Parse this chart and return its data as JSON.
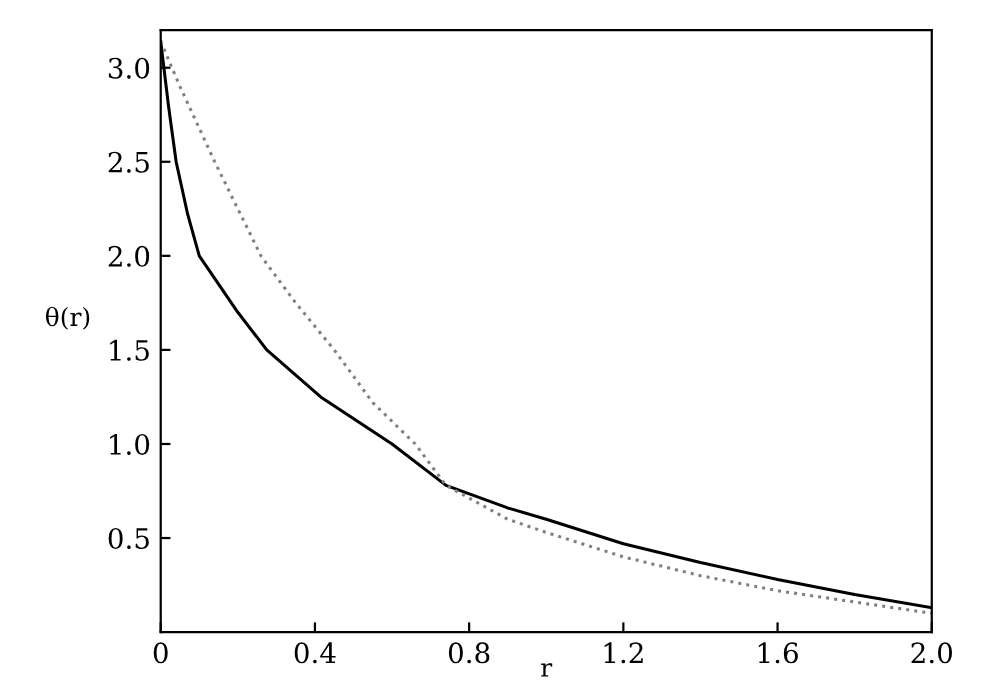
{
  "chart_data": {
    "type": "line",
    "xlabel": "r",
    "ylabel": "θ(r)",
    "xlim": [
      0,
      2.0
    ],
    "ylim": [
      0,
      3.2
    ],
    "xticks": [
      0,
      0.4,
      0.8,
      1.2,
      1.6,
      {
        "value": 2,
        "label": "2.0"
      }
    ],
    "yticks": [
      0.5,
      {
        "value": 1,
        "label": "1.0"
      },
      1.5,
      {
        "value": 2,
        "label": "2.0"
      },
      2.5,
      {
        "value": 3,
        "label": "3.0"
      }
    ],
    "grid": false,
    "legend": false,
    "series": [
      {
        "color": "#000000",
        "line_style": "solid",
        "x": [
          0,
          0.02,
          0.04,
          0.07,
          0.1,
          0.2,
          0.275,
          0.415,
          0.6,
          0.74,
          0.9,
          1.0,
          1.2,
          1.4,
          1.6,
          1.8,
          2.0
        ],
        "values": [
          3.14,
          2.8,
          2.5,
          2.22,
          2.0,
          1.7,
          1.5,
          1.25,
          1.0,
          0.78,
          0.66,
          0.6,
          0.47,
          0.37,
          0.28,
          0.2,
          0.13
        ]
      },
      {
        "color": "#808080",
        "line_style": "dotted",
        "x": [
          0,
          0.05,
          0.14,
          0.26,
          0.35,
          0.45,
          0.55,
          0.66,
          0.74,
          0.9,
          1.0,
          1.2,
          1.4,
          1.6,
          1.8,
          2.0
        ],
        "values": [
          3.14,
          2.9,
          2.5,
          2.0,
          1.75,
          1.5,
          1.22,
          1.0,
          0.78,
          0.6,
          0.53,
          0.4,
          0.3,
          0.22,
          0.16,
          0.1
        ]
      }
    ]
  }
}
